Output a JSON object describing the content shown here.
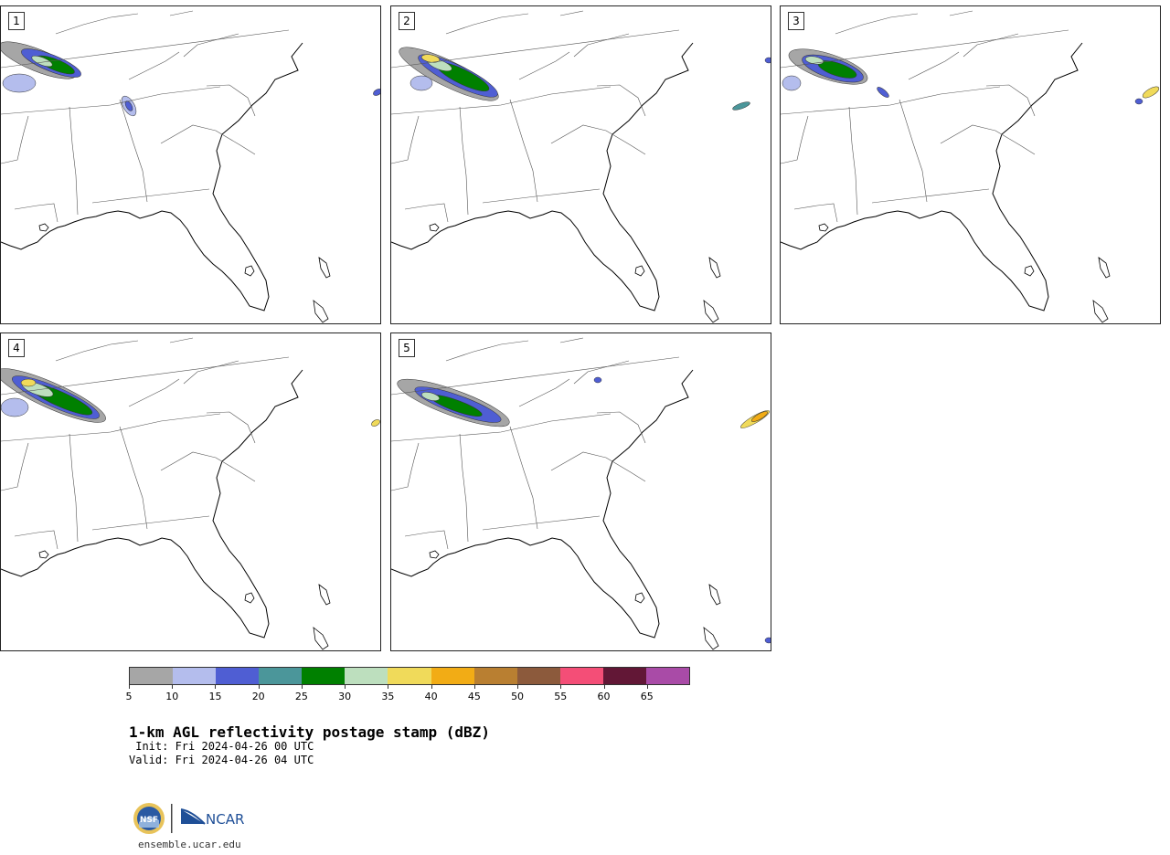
{
  "title": "1-km AGL reflectivity postage stamp (dBZ)",
  "init_line": " Init: Fri 2024-04-26 00 UTC",
  "valid_line": "Valid: Fri 2024-04-26 04 UTC",
  "url": "ensemble.ucar.edu",
  "logos": {
    "left": "NSF",
    "right": "NCAR"
  },
  "members": [
    {
      "id": "1"
    },
    {
      "id": "2"
    },
    {
      "id": "3"
    },
    {
      "id": "4"
    },
    {
      "id": "5"
    }
  ],
  "colorbar": {
    "ticks": [
      "5",
      "10",
      "15",
      "20",
      "25",
      "30",
      "35",
      "40",
      "45",
      "50",
      "55",
      "60",
      "65"
    ],
    "colors": [
      "#a6a6a6",
      "#b4bded",
      "#4f5ed3",
      "#4b969a",
      "#008000",
      "#bddfbe",
      "#f0da5a",
      "#f2ac15",
      "#b97f31",
      "#8c5a3c",
      "#f44e77",
      "#621736",
      "#a94ba7"
    ]
  },
  "chart_data": {
    "type": "heatmap",
    "field": "1-km AGL reflectivity",
    "units": "dBZ",
    "region": "Southeastern United States",
    "panels": 5,
    "scale": [
      5,
      10,
      15,
      20,
      25,
      30,
      35,
      40,
      45,
      50,
      55,
      60,
      65
    ]
  }
}
